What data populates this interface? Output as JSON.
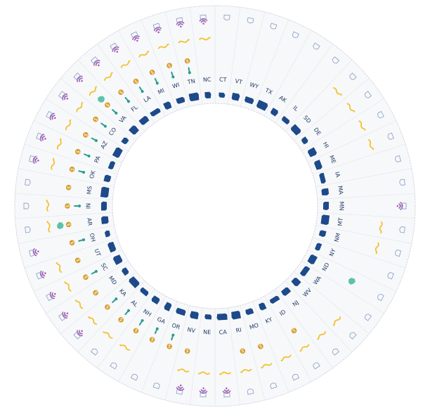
{
  "colors": {
    "state": "#1d4a8a",
    "label": "#1f3a66",
    "wifi": "#a45fb5",
    "squiggle": "#f2c230",
    "dollar": "#d49a22",
    "thermo": "#2a9d8f",
    "bigicon": "#5cc3a9",
    "shield": "#8fa4c8"
  },
  "chart_data": {
    "type": "radial",
    "categories": [
      "CT",
      "VT",
      "WY",
      "TX",
      "AK",
      "IL",
      "SD",
      "DE",
      "HI",
      "ME",
      "IA",
      "MA",
      "MN",
      "MT",
      "NM",
      "NY",
      "ND",
      "WA",
      "WV",
      "NJ",
      "ID",
      "KY",
      "MO",
      "RI",
      "CA",
      "NE",
      "NV",
      "OR",
      "GA",
      "NH",
      "AL",
      "KA",
      "MD",
      "SC",
      "UT",
      "OH",
      "AR",
      "IN",
      "MS",
      "OK",
      "PA",
      "AZ",
      "CO",
      "VA",
      "FL",
      "LA",
      "MI",
      "WI",
      "TN",
      "NC"
    ],
    "series": [
      {
        "icon": "wifi-icon",
        "values": [
          0,
          0,
          0,
          0,
          0,
          0,
          0,
          0,
          0,
          0,
          0,
          0,
          1,
          0,
          0,
          0,
          0,
          0,
          0,
          0,
          0,
          0,
          0,
          0,
          1,
          1,
          1,
          0,
          0,
          0,
          0,
          1,
          1,
          1,
          1,
          1,
          0,
          0,
          0,
          1,
          1,
          1,
          1,
          1,
          1,
          1,
          1,
          1,
          1,
          1
        ]
      },
      {
        "icon": "squiggle-icon",
        "values": [
          0,
          0,
          0,
          0,
          0,
          0,
          1,
          1,
          1,
          1,
          0,
          0,
          0,
          1,
          1,
          0,
          0,
          0,
          1,
          1,
          1,
          1,
          1,
          1,
          1,
          1,
          1,
          0,
          0,
          1,
          1,
          1,
          1,
          1,
          1,
          0,
          1,
          1,
          0,
          1,
          1,
          1,
          1,
          1,
          1,
          1,
          1,
          1,
          1,
          1
        ]
      },
      {
        "icon": "dollar-icon",
        "values": [
          0,
          0,
          0,
          0,
          0,
          0,
          0,
          0,
          0,
          0,
          0,
          0,
          0,
          0,
          0,
          0,
          0,
          0,
          0,
          0,
          1,
          0,
          1,
          1,
          0,
          0,
          1,
          1,
          1,
          1,
          1,
          1,
          1,
          1,
          1,
          1,
          1,
          1,
          1,
          1,
          1,
          1,
          1,
          1,
          1,
          1,
          1,
          1,
          1,
          0
        ]
      },
      {
        "icon": "thermometer-icon",
        "values": [
          0,
          0,
          0,
          0,
          0,
          0,
          0,
          0,
          0,
          0,
          0,
          0,
          0,
          0,
          0,
          0,
          0,
          0,
          0,
          0,
          0,
          0,
          0,
          0,
          0,
          0,
          0,
          1,
          1,
          1,
          1,
          1,
          0,
          1,
          0,
          1,
          0,
          1,
          0,
          1,
          1,
          1,
          1,
          1,
          1,
          1,
          1,
          1,
          1,
          0
        ]
      },
      {
        "icon": "map-badge-icon",
        "values": [
          0,
          0,
          0,
          0,
          0,
          0,
          0,
          0,
          0,
          0,
          0,
          0,
          0,
          0,
          0,
          0,
          1,
          0,
          0,
          0,
          0,
          0,
          0,
          0,
          0,
          0,
          0,
          0,
          0,
          0,
          0,
          0,
          0,
          0,
          0,
          0,
          1,
          0,
          0,
          0,
          0,
          0,
          0,
          1,
          0,
          0,
          0,
          0,
          0,
          0
        ]
      }
    ]
  }
}
